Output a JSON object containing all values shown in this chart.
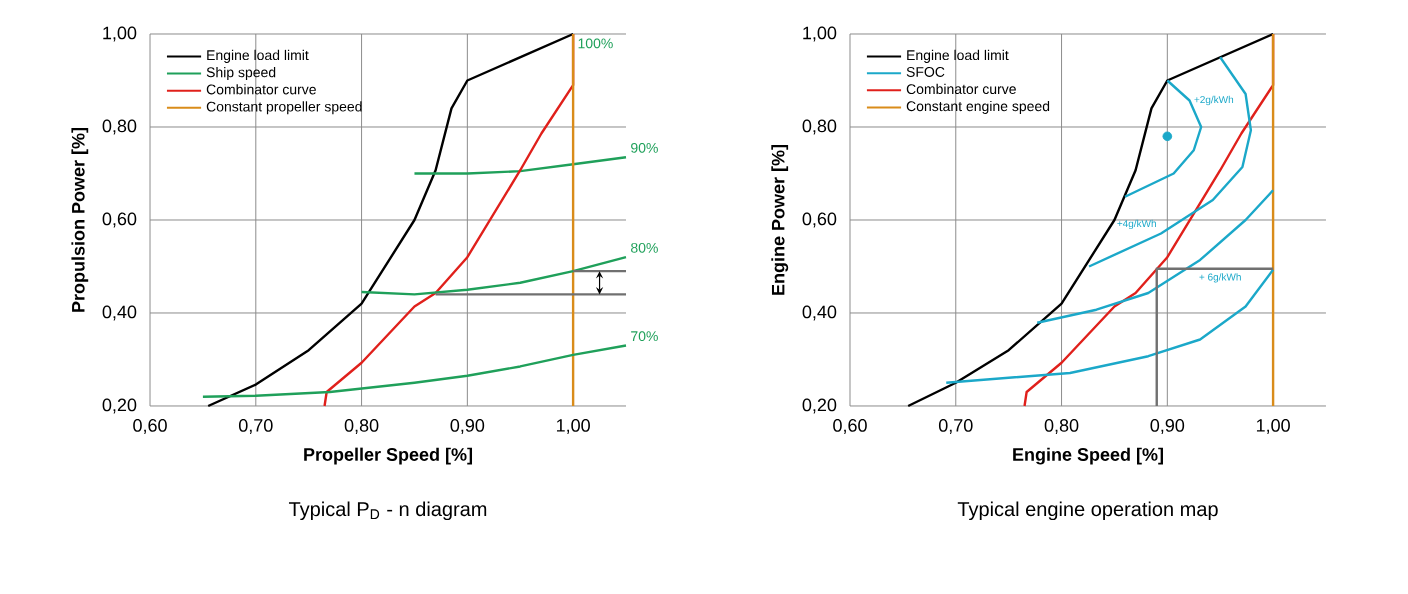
{
  "chart_data": [
    {
      "type": "line",
      "title": "Typical P$_{D}$ - n diagram",
      "xlabel": "Propeller Speed [%]",
      "ylabel": "Propulsion Power [%]",
      "xlim": [
        0.6,
        1.05
      ],
      "ylim": [
        0.2,
        1.0
      ],
      "xticks": [
        {
          "value": 0.6,
          "label": "0,60"
        },
        {
          "value": 0.7,
          "label": "0,70"
        },
        {
          "value": 0.8,
          "label": "0,80"
        },
        {
          "value": 0.9,
          "label": "0,90"
        },
        {
          "value": 1.0,
          "label": "1,00"
        }
      ],
      "yticks": [
        {
          "value": 0.2,
          "label": "0,20"
        },
        {
          "value": 0.4,
          "label": "0,40"
        },
        {
          "value": 0.6,
          "label": "0,60"
        },
        {
          "value": 0.8,
          "label": "0,80"
        },
        {
          "value": 1.0,
          "label": "1,00"
        }
      ],
      "grid": true,
      "legend": "top left",
      "series": [
        {
          "name": "Engine load limit",
          "color": "#000000",
          "x": [
            0.655,
            0.7,
            0.75,
            0.8,
            0.85,
            0.87,
            0.885,
            0.9,
            1.0
          ],
          "values": [
            0.2,
            0.246,
            0.32,
            0.42,
            0.6,
            0.707,
            0.84,
            0.9,
            1.0
          ]
        },
        {
          "name": "Ship speed",
          "color": "#1fa05a",
          "x": [
            0.85,
            0.9,
            0.95,
            1.0,
            1.05
          ],
          "values": [
            0.7,
            0.7,
            0.705,
            0.72,
            0.735
          ]
        },
        {
          "name": "Combinator curve",
          "color": "#e0201b",
          "x": [
            0.765,
            0.767,
            0.8,
            0.85,
            0.87,
            0.9,
            0.95,
            0.97,
            1.0,
            1.0
          ],
          "values": [
            0.2,
            0.23,
            0.293,
            0.414,
            0.443,
            0.52,
            0.707,
            0.786,
            0.89,
            1.0
          ]
        },
        {
          "name": "Constant propeller speed",
          "color": "#d98c1a",
          "x": [
            1.0,
            1.0
          ],
          "values": [
            0.2,
            1.0
          ]
        },
        {
          "color": "#1fa05a",
          "x": [
            0.8,
            0.85,
            0.9,
            0.95,
            1.0,
            1.05
          ],
          "values": [
            0.445,
            0.44,
            0.45,
            0.465,
            0.49,
            0.52
          ]
        },
        {
          "color": "#1fa05a",
          "x": [
            0.65,
            0.7,
            0.77,
            0.85,
            0.9,
            0.95,
            1.0,
            1.05
          ],
          "values": [
            0.22,
            0.222,
            0.23,
            0.25,
            0.265,
            0.285,
            0.31,
            0.33
          ]
        },
        {
          "color": "#707070",
          "x": [
            1.0,
            1.05
          ],
          "values": [
            0.49,
            0.49
          ]
        },
        {
          "color": "#707070",
          "x": [
            0.87,
            1.05
          ],
          "values": [
            0.44,
            0.44
          ]
        }
      ],
      "annotations": [
        {
          "text": "100%",
          "x": 1.0,
          "y": 1.0
        },
        {
          "text": "90%",
          "x": 1.05,
          "y": 0.735
        },
        {
          "text": "80%",
          "x": 1.05,
          "y": 0.52
        },
        {
          "text": "70%",
          "x": 1.05,
          "y": 0.33
        }
      ]
    },
    {
      "type": "line",
      "title": "Typical engine operation map",
      "xlabel": "Engine Speed [%]",
      "ylabel": "Engine Power [%]",
      "xlim": [
        0.6,
        1.05
      ],
      "ylim": [
        0.2,
        1.0
      ],
      "xticks": [
        {
          "value": 0.6,
          "label": "0,60"
        },
        {
          "value": 0.7,
          "label": "0,70"
        },
        {
          "value": 0.8,
          "label": "0,80"
        },
        {
          "value": 0.9,
          "label": "0,90"
        },
        {
          "value": 1.0,
          "label": "1,00"
        }
      ],
      "yticks": [
        {
          "value": 0.2,
          "label": "0,20"
        },
        {
          "value": 0.4,
          "label": "0,40"
        },
        {
          "value": 0.6,
          "label": "0,60"
        },
        {
          "value": 0.8,
          "label": "0,80"
        },
        {
          "value": 1.0,
          "label": "1,00"
        }
      ],
      "grid": true,
      "legend": "top left",
      "series": [
        {
          "name": "Engine load limit",
          "color": "#000000",
          "x": [
            0.655,
            0.7,
            0.75,
            0.8,
            0.85,
            0.87,
            0.885,
            0.9,
            1.0
          ],
          "values": [
            0.2,
            0.25,
            0.32,
            0.42,
            0.6,
            0.707,
            0.84,
            0.9,
            1.0
          ]
        },
        {
          "name": "SFOC",
          "color": "#1ba8c9",
          "x": [
            0.9,
            0.921,
            0.932,
            0.925,
            0.906,
            0.86
          ],
          "values": [
            0.9,
            0.857,
            0.8,
            0.75,
            0.7,
            0.65
          ]
        },
        {
          "name": "Combinator curve",
          "color": "#e0201b",
          "x": [
            0.765,
            0.767,
            0.8,
            0.85,
            0.87,
            0.9,
            0.95,
            0.97,
            1.0,
            1.0
          ],
          "values": [
            0.2,
            0.23,
            0.293,
            0.414,
            0.443,
            0.52,
            0.707,
            0.786,
            0.89,
            1.0
          ]
        },
        {
          "name": "Constant engine speed",
          "color": "#d98c1a",
          "x": [
            1.0,
            1.0
          ],
          "values": [
            0.2,
            1.0
          ]
        },
        {
          "color": "#1ba8c9",
          "x": [
            0.95,
            0.974,
            0.979,
            0.971,
            0.943,
            0.894,
            0.826
          ],
          "values": [
            0.95,
            0.871,
            0.793,
            0.714,
            0.643,
            0.571,
            0.5
          ]
        },
        {
          "color": "#1ba8c9",
          "x": [
            1.0,
            0.974,
            0.931,
            0.882,
            0.833,
            0.777
          ],
          "values": [
            0.664,
            0.6,
            0.514,
            0.443,
            0.407,
            0.379
          ]
        },
        {
          "color": "#1ba8c9",
          "x": [
            1.0,
            0.974,
            0.931,
            0.882,
            0.808,
            0.691
          ],
          "values": [
            0.493,
            0.414,
            0.343,
            0.307,
            0.271,
            0.25
          ]
        },
        {
          "type": "scatter",
          "color": "#1ba8c9",
          "x": [
            0.9
          ],
          "values": [
            0.78
          ]
        },
        {
          "color": "#707070",
          "x": [
            0.89,
            0.89,
            1.0
          ],
          "values": [
            0.2,
            0.495,
            0.495
          ]
        }
      ],
      "annotations": [
        {
          "text": "+2g/kWh",
          "x": 0.921,
          "y": 0.857
        },
        {
          "text": "+4g/kWh",
          "x": 0.894,
          "y": 0.571
        },
        {
          "text": "+ 6g/kWh",
          "x": 0.95,
          "y": 0.495
        }
      ]
    }
  ]
}
